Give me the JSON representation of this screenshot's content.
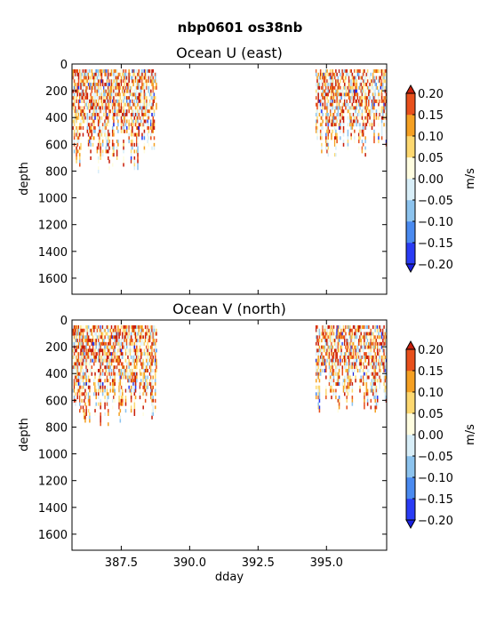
{
  "figure": {
    "suptitle": "nbp0601 os38nb"
  },
  "colorscale": {
    "levels": [
      -0.2,
      -0.15,
      -0.1,
      -0.05,
      0.0,
      0.05,
      0.1,
      0.15,
      0.2
    ],
    "tick_labels": [
      "−0.20",
      "−0.15",
      "−0.10",
      "−0.05",
      "0.00",
      "0.05",
      "0.10",
      "0.15",
      "0.20"
    ],
    "colors": [
      "#2a3cf5",
      "#4a8af0",
      "#8cc3ee",
      "#d8eef8",
      "#fffde0",
      "#fdd870",
      "#f5a023",
      "#e8501c"
    ],
    "under_color": "#1a20e0",
    "over_color": "#c81e0a",
    "unit": "m/s"
  },
  "chart_data": [
    {
      "type": "heatmap",
      "title": "Ocean U (east)",
      "xlabel": "",
      "ylabel": "depth",
      "xlim": [
        385.7,
        397.2
      ],
      "ylim": [
        1720,
        0
      ],
      "y_ticks": [
        0,
        200,
        400,
        600,
        800,
        1000,
        1200,
        1400,
        1600
      ],
      "x_ticks": [
        387.5,
        390.0,
        392.5,
        395.0
      ],
      "x_tick_labels": [
        "",
        "",
        "",
        ""
      ],
      "data_segments": [
        {
          "x_start": 385.72,
          "x_end": 388.8,
          "depth_top": 40,
          "depth_bottom": 800,
          "dominant": "warm"
        },
        {
          "x_start": 394.6,
          "x_end": 397.2,
          "depth_top": 40,
          "depth_bottom": 680,
          "dominant": "warm"
        }
      ]
    },
    {
      "type": "heatmap",
      "title": "Ocean V (north)",
      "xlabel": "dday",
      "ylabel": "depth",
      "xlim": [
        385.7,
        397.2
      ],
      "ylim": [
        1720,
        0
      ],
      "y_ticks": [
        0,
        200,
        400,
        600,
        800,
        1000,
        1200,
        1400,
        1600
      ],
      "x_ticks": [
        387.5,
        390.0,
        392.5,
        395.0
      ],
      "x_tick_labels": [
        "387.5",
        "390.0",
        "392.5",
        "395.0"
      ],
      "data_segments": [
        {
          "x_start": 385.72,
          "x_end": 388.8,
          "depth_top": 40,
          "depth_bottom": 780,
          "dominant": "warm"
        },
        {
          "x_start": 394.6,
          "x_end": 397.2,
          "depth_top": 40,
          "depth_bottom": 680,
          "dominant": "warm"
        }
      ]
    }
  ]
}
